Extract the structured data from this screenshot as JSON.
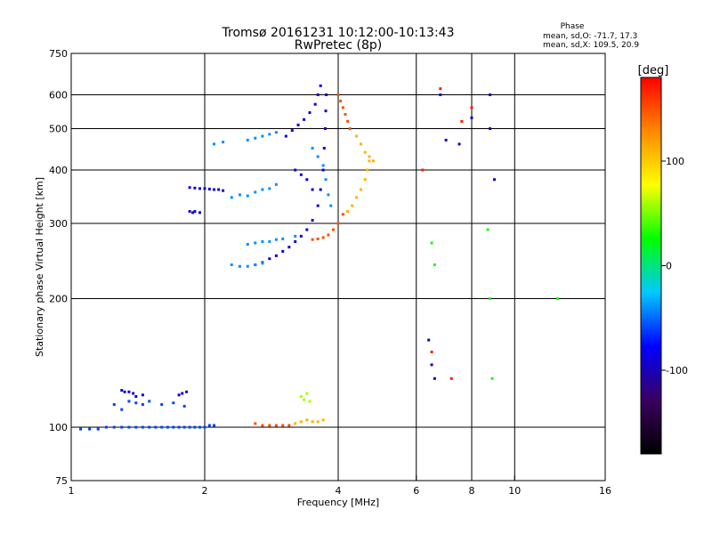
{
  "chart_data": {
    "type": "scatter",
    "title": "Tromsø 20161231 10:12:00-10:13:43",
    "subtitle": "RwPretec (8p)",
    "xlabel": "Frequency [MHz]",
    "ylabel": "Stationary phase Virtual Height [km]",
    "x_scale": "log",
    "y_scale": "log",
    "xlim": [
      1,
      16
    ],
    "ylim": [
      75,
      750
    ],
    "x_ticks": [
      1,
      2,
      4,
      6,
      8,
      10,
      16
    ],
    "x_tick_labels": [
      "1",
      "2",
      "4",
      "6",
      "8",
      "10",
      "16"
    ],
    "x_gridlines": [
      2,
      4,
      6,
      8,
      10
    ],
    "y_ticks": [
      75,
      100,
      200,
      300,
      400,
      500,
      600,
      750
    ],
    "y_tick_labels": [
      "75",
      "100",
      "200",
      "300",
      "400",
      "500",
      "600",
      "750"
    ],
    "y_gridlines": [
      100,
      200,
      300,
      400,
      500,
      600
    ],
    "grid": true,
    "phase_stats": {
      "header": "Phase",
      "line1": "mean, sd,O: -71.7, 17.3",
      "line2": "mean, sd,X: 109.5, 20.9"
    },
    "colorbar": {
      "label": "[deg]",
      "range": [
        -180,
        180
      ],
      "ticks": [
        100,
        0,
        -100
      ],
      "tick_labels": [
        "100",
        "0",
        "-100"
      ],
      "colors": [
        "#000000",
        "#3a0060",
        "#0000ff",
        "#00c8ff",
        "#00ff00",
        "#ffff00",
        "#ff8800",
        "#ff0000"
      ]
    },
    "series": [
      {
        "phase_deg": -60,
        "points": [
          [
            1.05,
            99
          ],
          [
            1.1,
            99
          ],
          [
            1.15,
            99
          ],
          [
            1.2,
            100
          ],
          [
            1.25,
            100
          ],
          [
            1.3,
            100
          ],
          [
            1.35,
            100
          ],
          [
            1.4,
            100
          ],
          [
            1.45,
            100
          ],
          [
            1.5,
            100
          ],
          [
            1.55,
            100
          ],
          [
            1.6,
            100
          ],
          [
            1.65,
            100
          ],
          [
            1.7,
            100
          ],
          [
            1.75,
            100
          ],
          [
            1.8,
            100
          ],
          [
            1.85,
            100
          ],
          [
            1.9,
            100
          ],
          [
            1.95,
            100
          ],
          [
            2.0,
            100
          ],
          [
            2.05,
            101
          ],
          [
            2.1,
            101
          ],
          [
            1.25,
            113
          ],
          [
            1.3,
            110
          ],
          [
            1.35,
            115
          ],
          [
            1.4,
            114
          ],
          [
            1.45,
            113
          ],
          [
            1.5,
            115
          ],
          [
            1.6,
            113
          ],
          [
            1.7,
            114
          ],
          [
            1.8,
            112
          ]
        ]
      },
      {
        "phase_deg": -90,
        "points": [
          [
            1.3,
            122
          ],
          [
            1.32,
            121
          ],
          [
            1.35,
            121
          ],
          [
            1.38,
            120
          ],
          [
            1.4,
            118
          ],
          [
            1.45,
            119
          ],
          [
            1.75,
            119
          ],
          [
            1.78,
            120
          ],
          [
            1.82,
            121
          ],
          [
            1.85,
            320
          ],
          [
            1.88,
            318
          ],
          [
            1.9,
            320
          ],
          [
            1.95,
            318
          ],
          [
            1.85,
            364
          ],
          [
            1.9,
            363
          ],
          [
            1.95,
            362
          ],
          [
            2.0,
            362
          ],
          [
            2.05,
            361
          ],
          [
            2.1,
            360
          ],
          [
            2.15,
            360
          ],
          [
            2.2,
            358
          ],
          [
            2.6,
            240
          ],
          [
            2.7,
            243
          ],
          [
            2.8,
            248
          ],
          [
            2.9,
            252
          ],
          [
            3.0,
            258
          ],
          [
            3.1,
            264
          ],
          [
            3.2,
            272
          ],
          [
            3.3,
            280
          ],
          [
            3.4,
            290
          ],
          [
            3.5,
            305
          ],
          [
            3.6,
            330
          ],
          [
            3.65,
            360
          ],
          [
            3.7,
            400
          ],
          [
            3.72,
            450
          ],
          [
            3.74,
            500
          ],
          [
            3.75,
            550
          ],
          [
            3.76,
            600
          ],
          [
            3.05,
            480
          ],
          [
            3.15,
            495
          ],
          [
            3.25,
            510
          ],
          [
            3.35,
            525
          ],
          [
            3.45,
            545
          ],
          [
            3.55,
            570
          ],
          [
            3.6,
            600
          ],
          [
            3.65,
            630
          ],
          [
            3.2,
            400
          ],
          [
            3.3,
            390
          ],
          [
            3.4,
            380
          ],
          [
            3.5,
            360
          ]
        ]
      },
      {
        "phase_deg": -40,
        "points": [
          [
            2.3,
            345
          ],
          [
            2.4,
            350
          ],
          [
            2.5,
            348
          ],
          [
            2.6,
            355
          ],
          [
            2.7,
            360
          ],
          [
            2.8,
            362
          ],
          [
            2.9,
            370
          ],
          [
            2.5,
            268
          ],
          [
            2.6,
            270
          ],
          [
            2.7,
            272
          ],
          [
            2.8,
            272
          ],
          [
            2.9,
            275
          ],
          [
            3.0,
            276
          ],
          [
            3.2,
            280
          ],
          [
            2.3,
            240
          ],
          [
            2.4,
            238
          ],
          [
            2.5,
            238
          ],
          [
            2.6,
            240
          ],
          [
            2.7,
            242
          ],
          [
            2.5,
            470
          ],
          [
            2.6,
            475
          ],
          [
            2.7,
            480
          ],
          [
            2.8,
            485
          ],
          [
            2.9,
            490
          ],
          [
            2.1,
            460
          ],
          [
            2.2,
            465
          ],
          [
            3.5,
            450
          ],
          [
            3.6,
            430
          ],
          [
            3.7,
            410
          ],
          [
            3.75,
            380
          ],
          [
            3.8,
            350
          ],
          [
            3.85,
            330
          ]
        ]
      },
      {
        "phase_deg": 150,
        "points": [
          [
            2.6,
            102
          ],
          [
            2.7,
            101
          ],
          [
            2.8,
            101
          ],
          [
            2.9,
            101
          ],
          [
            3.0,
            101
          ],
          [
            3.1,
            101
          ],
          [
            3.5,
            275
          ],
          [
            3.6,
            276
          ],
          [
            3.7,
            278
          ],
          [
            3.8,
            282
          ],
          [
            3.9,
            290
          ],
          [
            4.0,
            300
          ],
          [
            4.1,
            315
          ],
          [
            4.0,
            600
          ],
          [
            4.05,
            580
          ],
          [
            4.1,
            560
          ],
          [
            4.15,
            540
          ],
          [
            4.2,
            520
          ],
          [
            4.25,
            500
          ]
        ]
      },
      {
        "phase_deg": 110,
        "points": [
          [
            3.2,
            102
          ],
          [
            3.3,
            103
          ],
          [
            3.4,
            104
          ],
          [
            3.5,
            103
          ],
          [
            3.6,
            103
          ],
          [
            3.7,
            104
          ],
          [
            4.2,
            320
          ],
          [
            4.3,
            330
          ],
          [
            4.4,
            345
          ],
          [
            4.5,
            360
          ],
          [
            4.6,
            380
          ],
          [
            4.65,
            400
          ],
          [
            4.7,
            420
          ],
          [
            4.4,
            480
          ],
          [
            4.5,
            460
          ],
          [
            4.6,
            440
          ],
          [
            4.7,
            430
          ],
          [
            4.8,
            420
          ]
        ]
      },
      {
        "phase_deg": 60,
        "points": [
          [
            3.3,
            118
          ],
          [
            3.4,
            120
          ],
          [
            3.35,
            116
          ],
          [
            3.45,
            115
          ]
        ]
      },
      {
        "phase_deg": -100,
        "points": [
          [
            6.4,
            160
          ],
          [
            6.5,
            140
          ],
          [
            6.6,
            130
          ],
          [
            6.8,
            600
          ],
          [
            7.0,
            470
          ],
          [
            7.5,
            460
          ],
          [
            8.0,
            530
          ],
          [
            8.8,
            500
          ],
          [
            8.8,
            600
          ],
          [
            9.0,
            380
          ]
        ]
      },
      {
        "phase_deg": 30,
        "points": [
          [
            6.5,
            270
          ],
          [
            6.6,
            240
          ],
          [
            8.7,
            290
          ],
          [
            8.8,
            200
          ],
          [
            8.9,
            130
          ],
          [
            12.5,
            200
          ]
        ]
      },
      {
        "phase_deg": 170,
        "points": [
          [
            6.2,
            400
          ],
          [
            6.8,
            620
          ],
          [
            7.6,
            520
          ],
          [
            8.0,
            560
          ],
          [
            6.5,
            150
          ],
          [
            7.2,
            130
          ]
        ]
      }
    ]
  }
}
